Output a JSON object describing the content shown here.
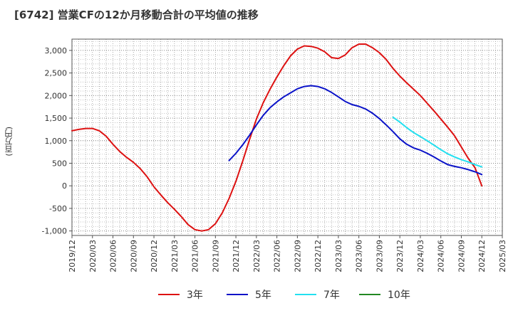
{
  "chart_data": {
    "type": "line",
    "title": "[6742]  営業CFの12か月移動合計の平均値の推移",
    "ylabel": "(百万円)",
    "xlabel": "",
    "ylim": [
      -1100,
      3250
    ],
    "yticks": [
      3000,
      2500,
      2000,
      1500,
      1000,
      500,
      0,
      -500,
      -1000
    ],
    "ytick_labels": [
      "3,000",
      "2,500",
      "2,000",
      "1,500",
      "1,000",
      "500",
      "0",
      "-500",
      "-1,000"
    ],
    "xlim": [
      "2019/12",
      "2025/03"
    ],
    "xtick_labels": [
      "2019/12",
      "2020/03",
      "2020/06",
      "2020/09",
      "2020/12",
      "2021/03",
      "2021/06",
      "2021/09",
      "2021/12",
      "2022/03",
      "2022/06",
      "2022/09",
      "2022/12",
      "2023/03",
      "2023/06",
      "2023/09",
      "2023/12",
      "2024/03",
      "2024/06",
      "2024/09",
      "2024/12",
      "2025/03"
    ],
    "grid": true,
    "legend_position": "bottom",
    "series": [
      {
        "name": "3年",
        "color": "#dd1111",
        "x": [
          "2019/12",
          "2020/01",
          "2020/02",
          "2020/03",
          "2020/04",
          "2020/05",
          "2020/06",
          "2020/07",
          "2020/08",
          "2020/09",
          "2020/10",
          "2020/11",
          "2020/12",
          "2021/01",
          "2021/02",
          "2021/03",
          "2021/04",
          "2021/05",
          "2021/06",
          "2021/07",
          "2021/08",
          "2021/09",
          "2021/10",
          "2021/11",
          "2021/12",
          "2022/01",
          "2022/02",
          "2022/03",
          "2022/04",
          "2022/05",
          "2022/06",
          "2022/07",
          "2022/08",
          "2022/09",
          "2022/10",
          "2022/11",
          "2022/12",
          "2023/01",
          "2023/02",
          "2023/03",
          "2023/04",
          "2023/05",
          "2023/06",
          "2023/07",
          "2023/08",
          "2023/09",
          "2023/10",
          "2023/11",
          "2023/12",
          "2024/01",
          "2024/02",
          "2024/03",
          "2024/04",
          "2024/05",
          "2024/06",
          "2024/07",
          "2024/08",
          "2024/09",
          "2024/10",
          "2024/11",
          "2024/12"
        ],
        "values": [
          1220,
          1250,
          1270,
          1270,
          1220,
          1100,
          920,
          760,
          630,
          520,
          380,
          200,
          -20,
          -200,
          -370,
          -520,
          -680,
          -860,
          -970,
          -1000,
          -970,
          -840,
          -600,
          -280,
          100,
          550,
          1030,
          1480,
          1840,
          2140,
          2410,
          2660,
          2880,
          3030,
          3100,
          3090,
          3050,
          2970,
          2840,
          2820,
          2900,
          3060,
          3140,
          3140,
          3060,
          2950,
          2800,
          2600,
          2430,
          2280,
          2140,
          2000,
          1830,
          1660,
          1480,
          1300,
          1110,
          860,
          610,
          400,
          0
        ]
      },
      {
        "name": "5年",
        "color": "#0a12c8",
        "x": [
          "2021/11",
          "2021/12",
          "2022/01",
          "2022/02",
          "2022/03",
          "2022/04",
          "2022/05",
          "2022/06",
          "2022/07",
          "2022/08",
          "2022/09",
          "2022/10",
          "2022/11",
          "2022/12",
          "2023/01",
          "2023/02",
          "2023/03",
          "2023/04",
          "2023/05",
          "2023/06",
          "2023/07",
          "2023/08",
          "2023/09",
          "2023/10",
          "2023/11",
          "2023/12",
          "2024/01",
          "2024/02",
          "2024/03",
          "2024/04",
          "2024/05",
          "2024/06",
          "2024/07",
          "2024/08",
          "2024/09",
          "2024/10",
          "2024/11",
          "2024/12"
        ],
        "values": [
          560,
          720,
          910,
          1120,
          1350,
          1560,
          1730,
          1860,
          1970,
          2060,
          2150,
          2200,
          2220,
          2200,
          2150,
          2070,
          1970,
          1870,
          1800,
          1760,
          1700,
          1610,
          1490,
          1350,
          1200,
          1040,
          920,
          840,
          790,
          720,
          640,
          550,
          470,
          430,
          400,
          360,
          310,
          250
        ]
      },
      {
        "name": "7年",
        "color": "#22e0f0",
        "x": [
          "2023/11",
          "2023/12",
          "2024/01",
          "2024/02",
          "2024/03",
          "2024/04",
          "2024/05",
          "2024/06",
          "2024/07",
          "2024/08",
          "2024/09",
          "2024/10",
          "2024/11",
          "2024/12"
        ],
        "values": [
          1520,
          1410,
          1290,
          1180,
          1090,
          1000,
          900,
          800,
          710,
          640,
          580,
          530,
          470,
          420
        ]
      },
      {
        "name": "10年",
        "color": "#228822",
        "x": [],
        "values": []
      }
    ]
  }
}
